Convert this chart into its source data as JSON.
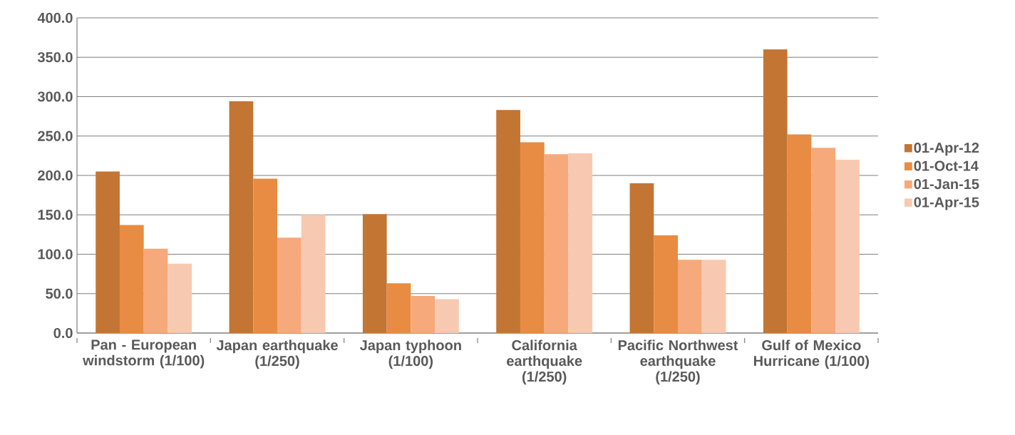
{
  "chart_data": {
    "type": "bar",
    "categories": [
      "Pan - European windstorm (1/100)",
      "Japan earthquake (1/250)",
      "Japan typhoon (1/100)",
      "California earthquake (1/250)",
      "Pacific Northwest earthquake (1/250)",
      "Gulf of Mexico Hurricane (1/100)"
    ],
    "series": [
      {
        "name": "01-Apr-12",
        "color": "#c37534",
        "values": [
          205,
          294,
          151,
          283,
          190,
          360
        ]
      },
      {
        "name": "01-Oct-14",
        "color": "#e78c42",
        "values": [
          137,
          196,
          63,
          242,
          124,
          252
        ]
      },
      {
        "name": "01-Jan-15",
        "color": "#f6a97a",
        "values": [
          107,
          121,
          47,
          227,
          93,
          235
        ]
      },
      {
        "name": "01-Apr-15",
        "color": "#f8c9b1",
        "values": [
          88,
          150,
          43,
          228,
          93,
          220
        ]
      }
    ],
    "ylim": [
      0,
      400
    ],
    "yticks": [
      {
        "value": 0,
        "label": "0.0"
      },
      {
        "value": 50,
        "label": "50.0"
      },
      {
        "value": 100,
        "label": "100.0"
      },
      {
        "value": 150,
        "label": "150.0"
      },
      {
        "value": 200,
        "label": "200.0"
      },
      {
        "value": 250,
        "label": "250.0"
      },
      {
        "value": 300,
        "label": "300.0"
      },
      {
        "value": 350,
        "label": "350.0"
      },
      {
        "value": 400,
        "label": "400.0"
      }
    ],
    "grid": "y",
    "legend": "right"
  }
}
